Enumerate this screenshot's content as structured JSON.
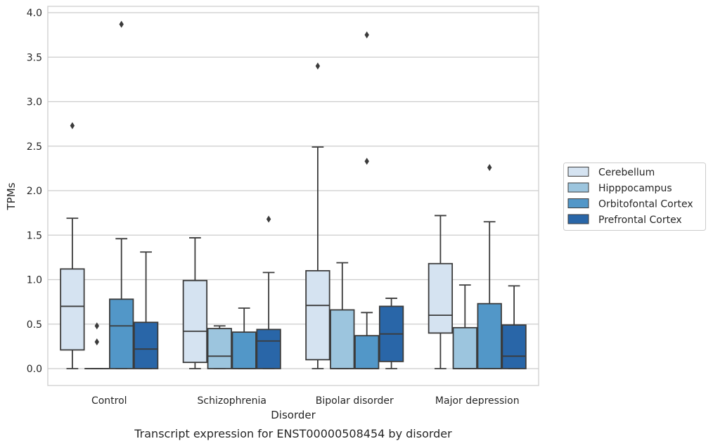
{
  "chart_data": {
    "type": "boxplot",
    "xlabel": "Disorder",
    "ylabel": "TPMs",
    "caption": "Transcript expression for ENST00000508454 by disorder",
    "ylim": [
      -0.18,
      4.07
    ],
    "yticks": [
      "0.0",
      "0.5",
      "1.0",
      "1.5",
      "2.0",
      "2.5",
      "3.0",
      "3.5",
      "4.0"
    ],
    "grid": "horizontal",
    "legend_position": "right",
    "categories": [
      "Control",
      "Schizophrenia",
      "Bipolar disorder",
      "Major depression"
    ],
    "series": [
      {
        "name": "Cerebellum",
        "color": "#d5e3f1",
        "boxes": [
          {
            "whislo": 0.0,
            "q1": 0.21,
            "med": 0.7,
            "q3": 1.12,
            "whishi": 1.69,
            "fliers": [
              2.73
            ]
          },
          {
            "whislo": 0.0,
            "q1": 0.07,
            "med": 0.42,
            "q3": 0.99,
            "whishi": 1.47,
            "fliers": []
          },
          {
            "whislo": 0.0,
            "q1": 0.1,
            "med": 0.71,
            "q3": 1.1,
            "whishi": 2.49,
            "fliers": [
              3.4
            ]
          },
          {
            "whislo": 0.0,
            "q1": 0.4,
            "med": 0.6,
            "q3": 1.18,
            "whishi": 1.72,
            "fliers": []
          }
        ]
      },
      {
        "name": "Hipppocampus",
        "color": "#9cc5de",
        "boxes": [
          {
            "whislo": 0.0,
            "q1": 0.0,
            "med": 0.0,
            "q3": 0.0,
            "whishi": 0.0,
            "fliers": [
              0.3,
              0.48
            ]
          },
          {
            "whislo": 0.0,
            "q1": 0.0,
            "med": 0.14,
            "q3": 0.45,
            "whishi": 0.48,
            "fliers": []
          },
          {
            "whislo": 0.0,
            "q1": 0.0,
            "med": 0.0,
            "q3": 0.66,
            "whishi": 1.19,
            "fliers": []
          },
          {
            "whislo": 0.0,
            "q1": 0.0,
            "med": 0.0,
            "q3": 0.46,
            "whishi": 0.94,
            "fliers": []
          }
        ]
      },
      {
        "name": "Orbitofontal Cortex",
        "color": "#5297c8",
        "boxes": [
          {
            "whislo": 0.0,
            "q1": 0.0,
            "med": 0.48,
            "q3": 0.78,
            "whishi": 1.46,
            "fliers": [
              3.87
            ]
          },
          {
            "whislo": 0.0,
            "q1": 0.0,
            "med": 0.0,
            "q3": 0.41,
            "whishi": 0.68,
            "fliers": []
          },
          {
            "whislo": 0.0,
            "q1": 0.0,
            "med": 0.0,
            "q3": 0.37,
            "whishi": 0.63,
            "fliers": [
              2.33,
              3.75
            ]
          },
          {
            "whislo": 0.0,
            "q1": 0.0,
            "med": 0.0,
            "q3": 0.73,
            "whishi": 1.65,
            "fliers": [
              2.26
            ]
          }
        ]
      },
      {
        "name": "Prefrontal Cortex",
        "color": "#2966a8",
        "boxes": [
          {
            "whislo": 0.0,
            "q1": 0.0,
            "med": 0.22,
            "q3": 0.52,
            "whishi": 1.31,
            "fliers": []
          },
          {
            "whislo": 0.0,
            "q1": 0.0,
            "med": 0.31,
            "q3": 0.44,
            "whishi": 1.08,
            "fliers": [
              1.68
            ]
          },
          {
            "whislo": 0.0,
            "q1": 0.08,
            "med": 0.39,
            "q3": 0.7,
            "whishi": 0.79,
            "fliers": []
          },
          {
            "whislo": 0.0,
            "q1": 0.0,
            "med": 0.14,
            "q3": 0.49,
            "whishi": 0.93,
            "fliers": []
          }
        ]
      }
    ]
  }
}
